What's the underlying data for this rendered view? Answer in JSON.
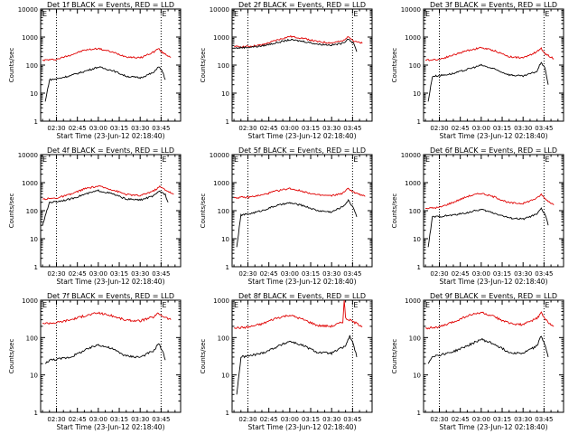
{
  "page": {
    "background": "#ffffff"
  },
  "colors": {
    "events": "#000000",
    "lld": "#e00000",
    "axis": "#000000"
  },
  "chart_data": [
    {
      "type": "line",
      "title": "Det 1f BLACK = Events, RED = LLD",
      "xlabel": "Start Time (23-Jun-12 02:18:40)",
      "ylabel": "Counts/sec",
      "yscale": "log",
      "ylim": [
        1,
        10000
      ],
      "yticks": [
        "1",
        "10",
        "100",
        "1000",
        "10000"
      ],
      "xlim": [
        "02:18:40",
        "03:59:00"
      ],
      "xticks": [
        "02:30",
        "02:45",
        "03:00",
        "03:15",
        "03:30",
        "03:45"
      ],
      "markers": [
        "02:30",
        "03:45"
      ],
      "flag": "E",
      "series": [
        {
          "x": [
            "02:20",
            "02:25",
            "02:30",
            "02:40",
            "02:50",
            "03:00",
            "03:10",
            "03:20",
            "03:30",
            "03:40",
            "03:43",
            "03:46",
            "03:52"
          ],
          "values": [
            150,
            155,
            160,
            230,
            340,
            390,
            290,
            200,
            180,
            300,
            390,
            280,
            190
          ]
        },
        {
          "x": [
            "02:22",
            "02:25",
            "02:30",
            "02:40",
            "02:50",
            "03:00",
            "03:10",
            "03:20",
            "03:30",
            "03:40",
            "03:43",
            "03:46",
            "03:48"
          ],
          "values": [
            5,
            30,
            32,
            42,
            60,
            85,
            65,
            40,
            35,
            55,
            90,
            60,
            30
          ]
        }
      ]
    },
    {
      "type": "line",
      "title": "Det 2f BLACK = Events, RED = LLD",
      "xlabel": "Start Time (23-Jun-12 02:18:40)",
      "ylabel": "Counts/sec",
      "yscale": "log",
      "ylim": [
        1,
        10000
      ],
      "yticks": [
        "1",
        "10",
        "100",
        "1000",
        "10000"
      ],
      "xlim": [
        "02:18:40",
        "03:59:00"
      ],
      "xticks": [
        "02:30",
        "02:45",
        "03:00",
        "03:15",
        "03:30",
        "03:45"
      ],
      "markers": [
        "02:30",
        "03:45"
      ],
      "flag": "E",
      "series": [
        {
          "x": [
            "02:20",
            "02:30",
            "02:40",
            "02:50",
            "03:00",
            "03:10",
            "03:20",
            "03:30",
            "03:38",
            "03:42",
            "03:46",
            "03:52"
          ],
          "values": [
            450,
            460,
            520,
            760,
            1050,
            900,
            680,
            620,
            720,
            1100,
            700,
            600
          ]
        },
        {
          "x": [
            "02:20",
            "02:25",
            "02:30",
            "02:40",
            "02:50",
            "03:00",
            "03:10",
            "03:20",
            "03:30",
            "03:38",
            "03:42",
            "03:46",
            "03:48"
          ],
          "values": [
            400,
            420,
            430,
            480,
            620,
            800,
            700,
            560,
            520,
            600,
            880,
            560,
            300
          ]
        }
      ]
    },
    {
      "type": "line",
      "title": "Det 3f BLACK = Events, RED = LLD",
      "xlabel": "Start Time (23-Jun-12 02:18:40)",
      "ylabel": "Counts/sec",
      "yscale": "log",
      "ylim": [
        1,
        10000
      ],
      "yticks": [
        "1",
        "10",
        "100",
        "1000",
        "10000"
      ],
      "xlim": [
        "02:18:40",
        "03:59:00"
      ],
      "xticks": [
        "02:30",
        "02:45",
        "03:00",
        "03:15",
        "03:30",
        "03:45"
      ],
      "markers": [
        "02:30",
        "03:45"
      ],
      "flag": "E",
      "series": [
        {
          "x": [
            "02:20",
            "02:30",
            "02:40",
            "02:50",
            "03:00",
            "03:10",
            "03:20",
            "03:30",
            "03:40",
            "03:43",
            "03:46",
            "03:52"
          ],
          "values": [
            150,
            160,
            230,
            330,
            420,
            320,
            200,
            180,
            300,
            400,
            250,
            170
          ]
        },
        {
          "x": [
            "02:22",
            "02:25",
            "02:30",
            "02:40",
            "02:50",
            "03:00",
            "03:10",
            "03:20",
            "03:30",
            "03:40",
            "03:43",
            "03:46",
            "03:48"
          ],
          "values": [
            5,
            40,
            42,
            50,
            70,
            100,
            70,
            45,
            40,
            60,
            130,
            70,
            20
          ]
        }
      ]
    },
    {
      "type": "line",
      "title": "Det 4f BLACK = Events, RED = LLD",
      "xlabel": "Start Time (23-Jun-12 02:18:40)",
      "ylabel": "Counts/sec",
      "yscale": "log",
      "ylim": [
        1,
        10000
      ],
      "yticks": [
        "1",
        "10",
        "100",
        "1000",
        "10000"
      ],
      "xlim": [
        "02:18:40",
        "03:59:00"
      ],
      "xticks": [
        "02:30",
        "02:45",
        "03:00",
        "03:15",
        "03:30",
        "03:45"
      ],
      "markers": [
        "02:30",
        "03:45"
      ],
      "flag": "E",
      "series": [
        {
          "x": [
            "02:20",
            "02:30",
            "02:40",
            "02:50",
            "03:00",
            "03:10",
            "03:20",
            "03:30",
            "03:40",
            "03:44",
            "03:48",
            "03:54"
          ],
          "values": [
            260,
            280,
            380,
            600,
            750,
            560,
            380,
            340,
            520,
            720,
            560,
            380
          ]
        },
        {
          "x": [
            "02:20",
            "02:25",
            "02:30",
            "02:40",
            "02:50",
            "03:00",
            "03:10",
            "03:20",
            "03:30",
            "03:40",
            "03:44",
            "03:48",
            "03:50"
          ],
          "values": [
            30,
            200,
            210,
            260,
            380,
            520,
            400,
            260,
            240,
            340,
            500,
            380,
            200
          ]
        }
      ]
    },
    {
      "type": "line",
      "title": "Det 5f BLACK = Events, RED = LLD",
      "xlabel": "Start Time (23-Jun-12 02:18:40)",
      "ylabel": "Counts/sec",
      "yscale": "log",
      "ylim": [
        1,
        10000
      ],
      "yticks": [
        "1",
        "10",
        "100",
        "1000",
        "10000"
      ],
      "xlim": [
        "02:18:40",
        "03:59:00"
      ],
      "xticks": [
        "02:30",
        "02:45",
        "03:00",
        "03:15",
        "03:30",
        "03:45"
      ],
      "markers": [
        "02:30",
        "03:45"
      ],
      "flag": "E",
      "series": [
        {
          "x": [
            "02:20",
            "02:30",
            "02:40",
            "02:50",
            "03:00",
            "03:10",
            "03:20",
            "03:30",
            "03:38",
            "03:42",
            "03:46",
            "03:54"
          ],
          "values": [
            290,
            300,
            360,
            500,
            620,
            480,
            360,
            340,
            420,
            620,
            450,
            320
          ]
        },
        {
          "x": [
            "02:22",
            "02:25",
            "02:30",
            "02:40",
            "02:50",
            "03:00",
            "03:10",
            "03:20",
            "03:30",
            "03:38",
            "03:42",
            "03:46",
            "03:48"
          ],
          "values": [
            5,
            70,
            75,
            100,
            150,
            190,
            150,
            100,
            90,
            140,
            230,
            120,
            60
          ]
        }
      ]
    },
    {
      "type": "line",
      "title": "Det 6f BLACK = Events, RED = LLD",
      "xlabel": "Start Time (23-Jun-12 02:18:40)",
      "ylabel": "Counts/sec",
      "yscale": "log",
      "ylim": [
        1,
        10000
      ],
      "yticks": [
        "1",
        "10",
        "100",
        "1000",
        "10000"
      ],
      "xlim": [
        "02:18:40",
        "03:59:00"
      ],
      "xticks": [
        "02:30",
        "02:45",
        "03:00",
        "03:15",
        "03:30",
        "03:45"
      ],
      "markers": [
        "02:30",
        "03:45"
      ],
      "flag": "E",
      "series": [
        {
          "x": [
            "02:20",
            "02:30",
            "02:40",
            "02:50",
            "03:00",
            "03:10",
            "03:20",
            "03:30",
            "03:40",
            "03:43",
            "03:46",
            "03:52"
          ],
          "values": [
            120,
            130,
            200,
            320,
            420,
            300,
            190,
            180,
            280,
            380,
            260,
            160
          ]
        },
        {
          "x": [
            "02:22",
            "02:25",
            "02:30",
            "02:40",
            "02:50",
            "03:00",
            "03:10",
            "03:20",
            "03:30",
            "03:40",
            "03:43",
            "03:46",
            "03:48"
          ],
          "values": [
            5,
            60,
            62,
            70,
            85,
            110,
            80,
            55,
            50,
            75,
            120,
            70,
            30
          ]
        }
      ]
    },
    {
      "type": "line",
      "title": "Det 7f BLACK = Events, RED = LLD",
      "xlabel": "Start Time (23-Jun-12 02:18:40)",
      "ylabel": "Counts/sec",
      "yscale": "log",
      "ylim": [
        1,
        1000
      ],
      "yticks": [
        "1",
        "10",
        "100",
        "1000"
      ],
      "xlim": [
        "02:18:40",
        "03:59:00"
      ],
      "xticks": [
        "02:30",
        "02:45",
        "03:00",
        "03:15",
        "03:30",
        "03:45"
      ],
      "markers": [
        "02:30",
        "03:45"
      ],
      "flag": "E",
      "series": [
        {
          "x": [
            "02:20",
            "02:30",
            "02:40",
            "02:50",
            "03:00",
            "03:10",
            "03:20",
            "03:30",
            "03:40",
            "03:43",
            "03:46",
            "03:52"
          ],
          "values": [
            240,
            250,
            300,
            380,
            460,
            380,
            290,
            280,
            360,
            450,
            380,
            300
          ]
        },
        {
          "x": [
            "02:22",
            "02:25",
            "02:30",
            "02:40",
            "02:50",
            "03:00",
            "03:10",
            "03:20",
            "03:30",
            "03:40",
            "03:43",
            "03:46",
            "03:48"
          ],
          "values": [
            20,
            25,
            26,
            30,
            45,
            65,
            50,
            32,
            30,
            45,
            70,
            45,
            25
          ]
        }
      ]
    },
    {
      "type": "line",
      "title": "Det 8f BLACK = Events, RED = LLD",
      "xlabel": "Start Time (23-Jun-12 02:18:40)",
      "ylabel": "Counts/sec",
      "yscale": "log",
      "ylim": [
        1,
        1000
      ],
      "yticks": [
        "1",
        "10",
        "100",
        "1000"
      ],
      "xlim": [
        "02:18:40",
        "03:59:00"
      ],
      "xticks": [
        "02:30",
        "02:45",
        "03:00",
        "03:15",
        "03:30",
        "03:45"
      ],
      "markers": [
        "02:30",
        "03:45"
      ],
      "flag": "E",
      "series": [
        {
          "x": [
            "02:20",
            "02:30",
            "02:40",
            "02:50",
            "03:00",
            "03:10",
            "03:20",
            "03:30",
            "03:38",
            "03:39",
            "03:40",
            "03:44",
            "03:52"
          ],
          "values": [
            180,
            190,
            230,
            330,
            400,
            300,
            210,
            200,
            260,
            1000,
            330,
            280,
            200
          ]
        },
        {
          "x": [
            "02:22",
            "02:25",
            "02:30",
            "02:40",
            "02:50",
            "03:00",
            "03:10",
            "03:20",
            "03:30",
            "03:40",
            "03:43",
            "03:46",
            "03:48"
          ],
          "values": [
            3,
            30,
            32,
            38,
            55,
            80,
            60,
            40,
            38,
            60,
            110,
            60,
            30
          ]
        }
      ]
    },
    {
      "type": "line",
      "title": "Det 9f BLACK = Events, RED = LLD",
      "xlabel": "Start Time (23-Jun-12 02:18:40)",
      "ylabel": "Counts/sec",
      "yscale": "log",
      "ylim": [
        1,
        1000
      ],
      "yticks": [
        "1",
        "10",
        "100",
        "1000"
      ],
      "xlim": [
        "02:18:40",
        "03:59:00"
      ],
      "xticks": [
        "02:30",
        "02:45",
        "03:00",
        "03:15",
        "03:30",
        "03:45"
      ],
      "markers": [
        "02:30",
        "03:45"
      ],
      "flag": "E",
      "series": [
        {
          "x": [
            "02:20",
            "02:30",
            "02:40",
            "02:50",
            "03:00",
            "03:10",
            "03:20",
            "03:30",
            "03:40",
            "03:43",
            "03:46",
            "03:52"
          ],
          "values": [
            180,
            190,
            260,
            380,
            470,
            350,
            240,
            220,
            330,
            460,
            300,
            200
          ]
        },
        {
          "x": [
            "02:22",
            "02:25",
            "02:30",
            "02:40",
            "02:50",
            "03:00",
            "03:10",
            "03:20",
            "03:30",
            "03:40",
            "03:43",
            "03:46",
            "03:48"
          ],
          "values": [
            20,
            32,
            34,
            42,
            60,
            90,
            65,
            40,
            38,
            60,
            110,
            60,
            30
          ]
        }
      ]
    }
  ]
}
